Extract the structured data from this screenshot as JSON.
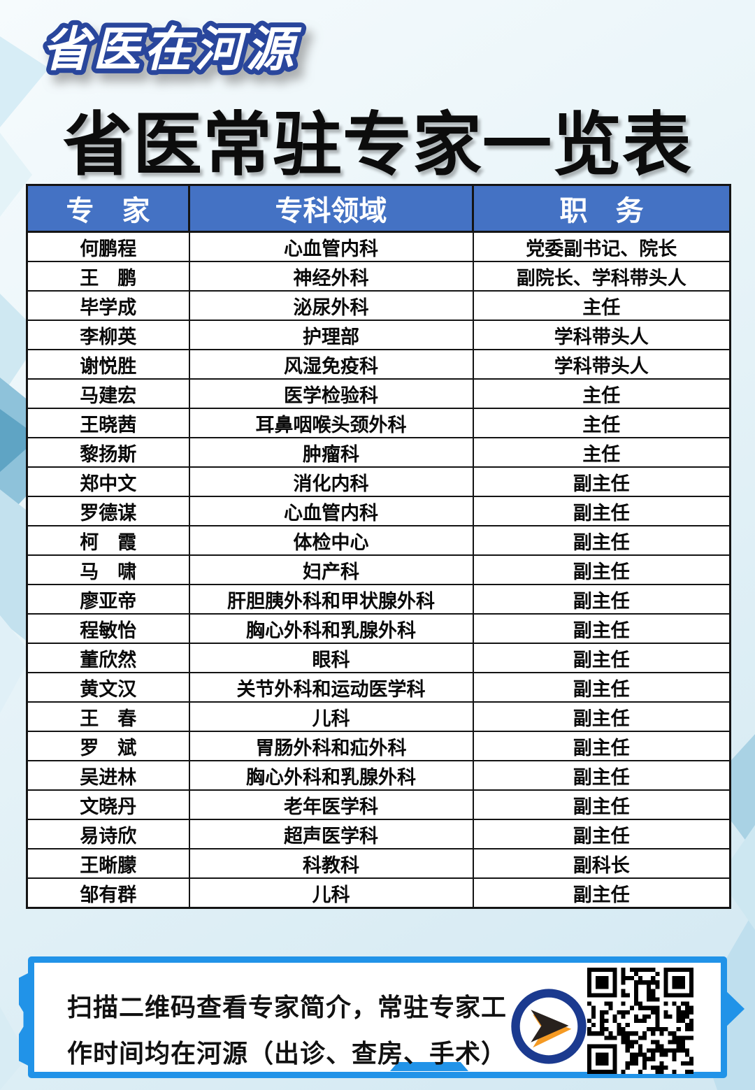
{
  "badge": {
    "text": "省医在河源"
  },
  "title": "省医常驻专家一览表",
  "table": {
    "headers": [
      "专　家",
      "专科领域",
      "职　务"
    ],
    "rows": [
      [
        "何鹏程",
        "心血管内科",
        "党委副书记、院长"
      ],
      [
        "王　鹏",
        "神经外科",
        "副院长、学科带头人"
      ],
      [
        "毕学成",
        "泌尿外科",
        "主任"
      ],
      [
        "李柳英",
        "护理部",
        "学科带头人"
      ],
      [
        "谢悦胜",
        "风湿免疫科",
        "学科带头人"
      ],
      [
        "马建宏",
        "医学检验科",
        "主任"
      ],
      [
        "王晓茜",
        "耳鼻咽喉头颈外科",
        "主任"
      ],
      [
        "黎扬斯",
        "肿瘤科",
        "主任"
      ],
      [
        "郑中文",
        "消化内科",
        "副主任"
      ],
      [
        "罗德谋",
        "心血管内科",
        "副主任"
      ],
      [
        "柯　霞",
        "体检中心",
        "副主任"
      ],
      [
        "马　啸",
        "妇产科",
        "副主任"
      ],
      [
        "廖亚帝",
        "肝胆胰外科和甲状腺外科",
        "副主任"
      ],
      [
        "程敏怡",
        "胸心外科和乳腺外科",
        "副主任"
      ],
      [
        "董欣然",
        "眼科",
        "副主任"
      ],
      [
        "黄文汉",
        "关节外科和运动医学科",
        "副主任"
      ],
      [
        "王　春",
        "儿科",
        "副主任"
      ],
      [
        "罗　斌",
        "胃肠外科和疝外科",
        "副主任"
      ],
      [
        "吴进林",
        "胸心外科和乳腺外科",
        "副主任"
      ],
      [
        "文晓丹",
        "老年医学科",
        "副主任"
      ],
      [
        "易诗欣",
        "超声医学科",
        "副主任"
      ],
      [
        "王晰朦",
        "科教科",
        "副科长"
      ],
      [
        "邹有群",
        "儿科",
        "副主任"
      ]
    ]
  },
  "banner": {
    "line1": "扫描二维码查看专家简介，常驻专家工",
    "line2": "作时间均在河源（出诊、查房、手术）",
    "arrow_icon": "arrow-in-circle-icon",
    "qr_icon": "qr-code"
  },
  "colors": {
    "header_bg": "#4472c4",
    "banner_border": "#2193e8",
    "badge_outline": "#29469c",
    "arrow_ring": "#1b3a8f",
    "arrow_accent": "#f59a23",
    "text_black": "#0c0c0c"
  }
}
